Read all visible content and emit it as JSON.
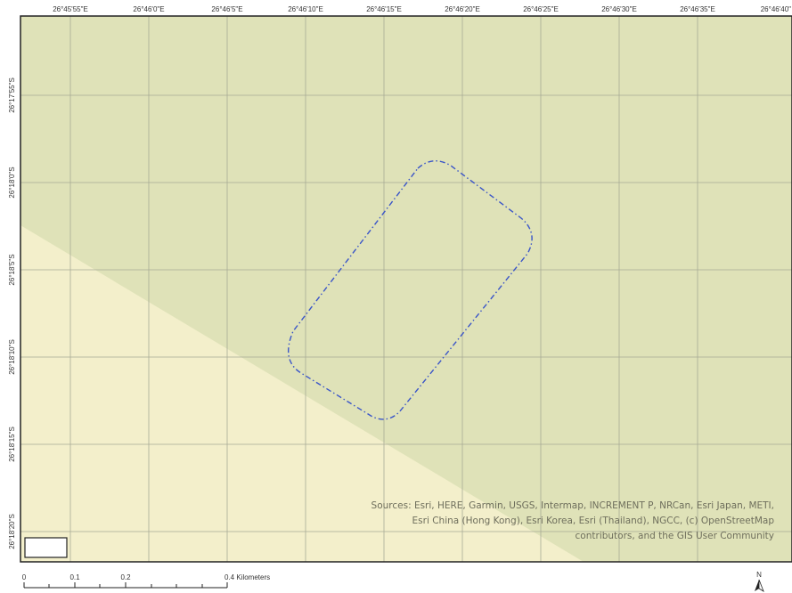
{
  "map": {
    "colors": {
      "upper_fill": "#dfe2b8",
      "lower_fill": "#f3efcb",
      "grid": "#a7aa96",
      "aoi_outline": "#3a55c8",
      "frame": "#222222"
    },
    "longitude_labels": [
      "26°45'55\"E",
      "26°46'0\"E",
      "26°46'5\"E",
      "26°46'10\"E",
      "26°46'15\"E",
      "26°46'20\"E",
      "26°46'25\"E",
      "26°46'30\"E",
      "26°46'35\"E",
      "26°46'40\""
    ],
    "latitude_labels": [
      "26°17'55\"S",
      "26°18'0\"S",
      "26°18'5\"S",
      "26°18'10\"S",
      "26°18'15\"S",
      "26°18'20\"S"
    ],
    "attribution": "Sources: Esri, HERE, Garmin, USGS, Intermap, INCREMENT P, NRCan, Esri Japan, METI, Esri China (Hong Kong), Esri Korea, Esri (Thailand), NGCC, (c) OpenStreetMap contributors, and the GIS User Community",
    "scale_bar": {
      "labels": [
        "0",
        "0.1",
        "0.2",
        "0.4 Kilometers"
      ]
    },
    "north_arrow": {
      "label": "N"
    }
  }
}
